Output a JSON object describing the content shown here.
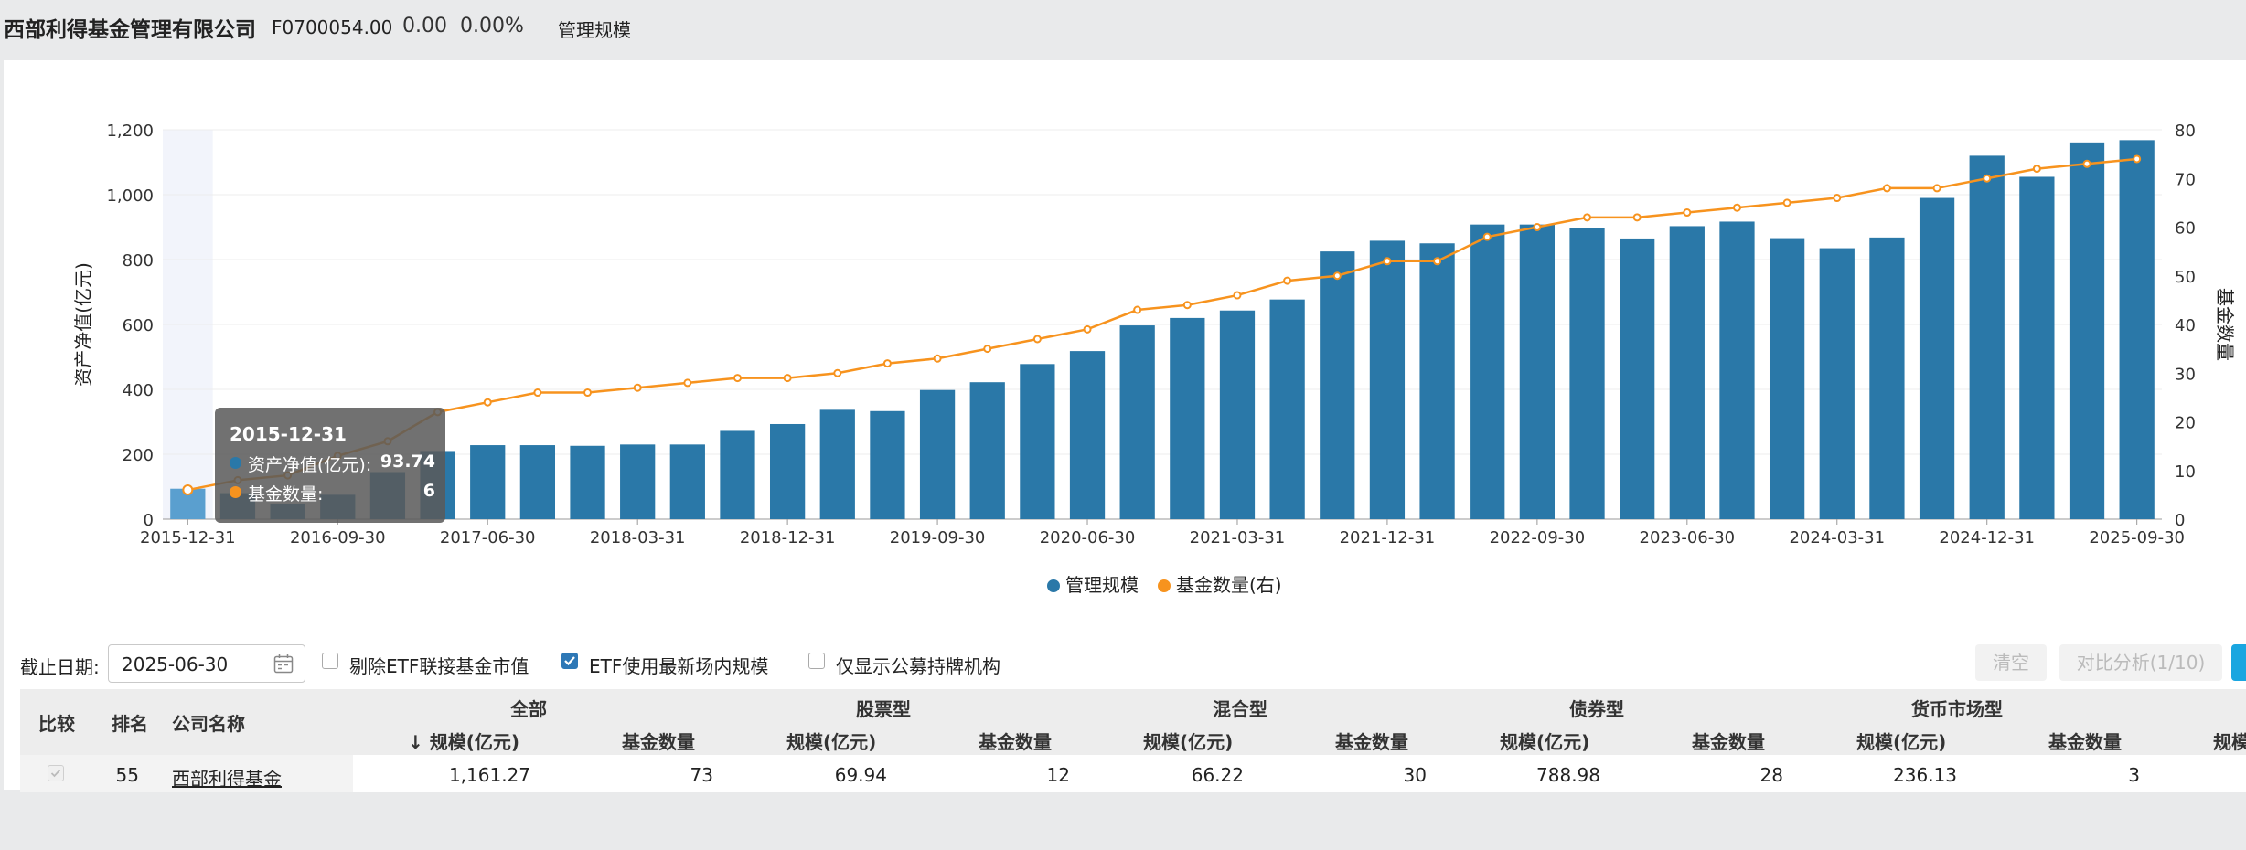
{
  "header": {
    "company": "西部利得基金管理有限公司",
    "code": "F0700054.00",
    "value": "0.00",
    "percent": "0.00%",
    "tab": "管理规模"
  },
  "colors": {
    "bar": "#2a78a8",
    "bar_highlight": "#5a9fcf",
    "line": "#f7931e",
    "tooltip_bg": "#5a5a5a"
  },
  "chart_data": {
    "type": "bar",
    "title": "",
    "xlabel": "",
    "ylabel": "资产净值(亿元)",
    "y2label": "基金数量",
    "ylim": [
      0,
      1200
    ],
    "y2lim": [
      0,
      80
    ],
    "yticks": [
      "0",
      "200",
      "400",
      "600",
      "800",
      "1,000",
      "1,200"
    ],
    "y2ticks": [
      "0",
      "10",
      "20",
      "30",
      "40",
      "50",
      "60",
      "70",
      "80"
    ],
    "xtick_labels": [
      "2015-12-31",
      "2016-09-30",
      "2017-06-30",
      "2018-03-31",
      "2018-12-31",
      "2019-09-30",
      "2020-06-30",
      "2021-03-31",
      "2021-12-31",
      "2022-09-30",
      "2023-06-30",
      "2024-03-31",
      "2024-12-31",
      "2025-09-30"
    ],
    "categories": [
      "2015-12-31",
      "2016-03-31",
      "2016-06-30",
      "2016-09-30",
      "2016-12-31",
      "2017-03-31",
      "2017-06-30",
      "2017-09-30",
      "2017-12-31",
      "2018-03-31",
      "2018-06-30",
      "2018-09-30",
      "2018-12-31",
      "2019-03-31",
      "2019-06-30",
      "2019-09-30",
      "2019-12-31",
      "2020-03-31",
      "2020-06-30",
      "2020-09-30",
      "2020-12-31",
      "2021-03-31",
      "2021-06-30",
      "2021-09-30",
      "2021-12-31",
      "2022-03-31",
      "2022-06-30",
      "2022-09-30",
      "2022-12-31",
      "2023-03-31",
      "2023-06-30",
      "2023-09-30",
      "2023-12-31",
      "2024-03-31",
      "2024-06-30",
      "2024-09-30",
      "2024-12-31",
      "2025-03-31",
      "2025-06-30",
      "2025-09-30"
    ],
    "series": [
      {
        "name": "管理规模",
        "type": "bar",
        "axis": "left",
        "values": [
          93.74,
          80,
          48,
          75,
          145,
          210,
          228,
          228,
          226,
          230,
          230,
          272,
          293,
          337,
          333,
          398,
          422,
          478,
          518,
          597,
          620,
          643,
          677,
          825,
          858,
          850,
          908,
          908,
          897,
          865,
          903,
          917,
          866,
          835,
          868,
          990,
          1120,
          1055,
          1161,
          1168
        ]
      },
      {
        "name": "基金数量(右)",
        "type": "line",
        "axis": "right",
        "values": [
          6,
          8,
          9,
          13,
          16,
          22,
          24,
          26,
          26,
          27,
          28,
          29,
          29,
          30,
          32,
          33,
          35,
          37,
          39,
          43,
          44,
          46,
          49,
          50,
          53,
          53,
          58,
          60,
          62,
          62,
          63,
          64,
          65,
          66,
          68,
          68,
          70,
          72,
          73,
          74
        ]
      }
    ],
    "legend": {
      "position": "bottom",
      "items": [
        "管理规模",
        "基金数量(右)"
      ]
    },
    "tooltip": {
      "date": "2015-12-31",
      "rows": [
        {
          "label": "资产净值(亿元):",
          "value": "93.74"
        },
        {
          "label": "基金数量:",
          "value": "6"
        }
      ]
    }
  },
  "filters": {
    "date_label": "截止日期:",
    "date_value": "2025-06-30",
    "checkbox_exclude_etf": {
      "label": "剔除ETF联接基金市值",
      "checked": false
    },
    "checkbox_etf_latest": {
      "label": "ETF使用最新场内规模",
      "checked": true
    },
    "checkbox_public_only": {
      "label": "仅显示公募持牌机构",
      "checked": false
    },
    "clear_button": "清空",
    "compare_button": "对比分析(1/10)"
  },
  "table": {
    "group_headers": [
      "全部",
      "股票型",
      "混合型",
      "债券型",
      "货币市场型"
    ],
    "fixed_headers": [
      "比较",
      "排名",
      "公司名称"
    ],
    "sub_headers": [
      "↓ 规模(亿元)",
      "基金数量",
      "规模(亿元)",
      "基金数量",
      "规模(亿元)",
      "基金数量",
      "规模(亿元)",
      "基金数量",
      "规模(亿元)",
      "基金数量",
      "规模"
    ],
    "rows": [
      {
        "rank": "55",
        "name": "西部利得基金",
        "cells": [
          "1,161.27",
          "73",
          "69.94",
          "12",
          "66.22",
          "30",
          "788.98",
          "28",
          "236.13",
          "3"
        ]
      }
    ]
  }
}
